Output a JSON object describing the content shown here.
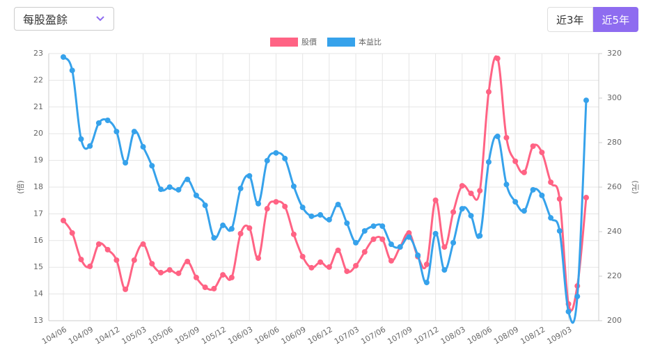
{
  "controls": {
    "dropdown": "每股盈餘",
    "buttons": [
      "近3年",
      "近5年"
    ]
  },
  "chart_data": {
    "type": "line",
    "categories": [
      "104/06",
      null,
      null,
      "104/09",
      null,
      null,
      "104/12",
      null,
      null,
      "105/03",
      null,
      null,
      "105/06",
      null,
      null,
      "105/09",
      null,
      null,
      "105/12",
      null,
      null,
      "106/03",
      null,
      null,
      "106/06",
      null,
      null,
      "106/09",
      null,
      null,
      "106/12",
      null,
      null,
      "107/03",
      null,
      null,
      "107/06",
      null,
      null,
      "107/09",
      null,
      null,
      "107/12",
      null,
      null,
      "108/03",
      null,
      null,
      "108/06",
      null,
      null,
      "108/09",
      null,
      null,
      "108/12",
      null,
      null,
      "109/03",
      null,
      null
    ],
    "series": [
      {
        "name": "股價",
        "color": "#ff6384",
        "axis": "y2",
        "values": [
          245,
          239.4,
          227.5,
          224.4,
          234.4,
          231.9,
          227.2,
          214.1,
          227.2,
          234.4,
          225.6,
          221.6,
          222.8,
          221.3,
          226.6,
          219.4,
          215,
          214.4,
          220.6,
          219.4,
          239.1,
          241.6,
          228.1,
          250.3,
          253.4,
          251.3,
          238.8,
          228.8,
          223.8,
          226.3,
          224.1,
          231.6,
          222.2,
          224.7,
          230.9,
          236.6,
          236.6,
          226.9,
          233.1,
          239.4,
          228.8,
          225.3,
          254.1,
          233.1,
          248.8,
          260.6,
          257.2,
          258.4,
          302.8,
          317.8,
          282.2,
          271.6,
          266.6,
          278.4,
          275.6,
          262.2,
          254.7,
          207.5,
          215.6,
          255.3
        ]
      },
      {
        "name": "本益比",
        "color": "#36a2eb",
        "values": [
          22.87,
          22.37,
          19.8,
          19.54,
          20.4,
          20.5,
          20.08,
          18.91,
          20.08,
          19.51,
          18.8,
          17.92,
          18,
          17.9,
          18.29,
          17.69,
          17.32,
          16.1,
          16.57,
          16.44,
          17.95,
          18.42,
          17.38,
          18.99,
          19.28,
          19.07,
          18.03,
          17.24,
          16.91,
          16.96,
          16.78,
          17.35,
          16.65,
          15.92,
          16.36,
          16.54,
          16.54,
          15.86,
          15.76,
          16.13,
          15.45,
          14.43,
          16.26,
          14.9,
          15.92,
          17.19,
          16.93,
          16.18,
          18.94,
          19.9,
          18.1,
          17.45,
          17.11,
          17.9,
          17.69,
          16.85,
          16.36,
          13.34,
          13.91,
          21.25
        ]
      }
    ],
    "ylabel": "(倍)",
    "y2label": "(元)",
    "ylim": [
      13,
      23
    ],
    "yticks": [
      13,
      14,
      15,
      16,
      17,
      18,
      19,
      20,
      21,
      22,
      23
    ],
    "y2lim": [
      200,
      320
    ],
    "y2ticks": [
      200,
      220,
      240,
      260,
      280,
      300,
      320
    ],
    "grid": true,
    "legend": "top"
  }
}
